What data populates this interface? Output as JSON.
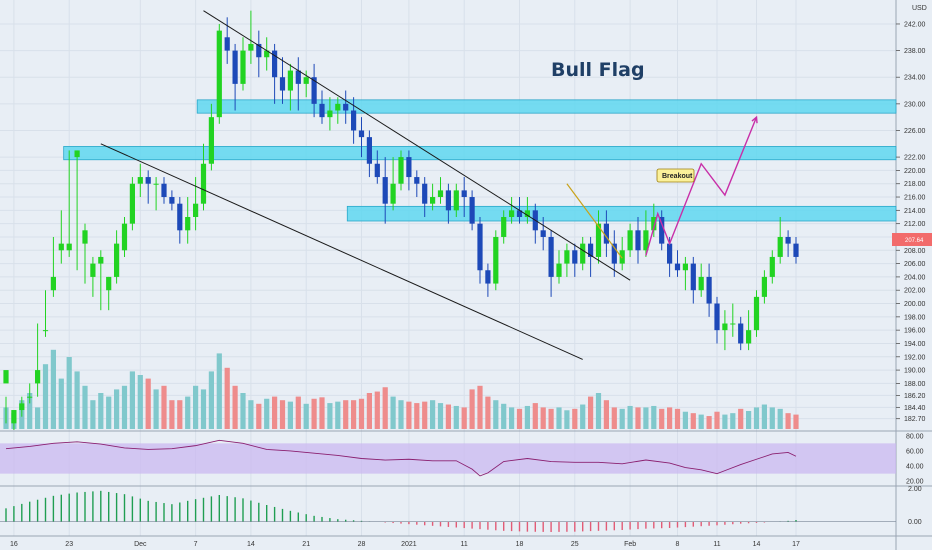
{
  "chart_data": {
    "type": "candlestick",
    "title": "Bull Flag",
    "annotation": "Breakout",
    "currency_label": "USD",
    "current_price_label": "207.64",
    "price_axis": {
      "min": 181,
      "max": 245,
      "ticks": [
        "182.70",
        "184.40",
        "186.20",
        "188.00",
        "190.00",
        "192.00",
        "194.00",
        "196.00",
        "198.00",
        "200.00",
        "202.00",
        "204.00",
        "206.00",
        "208.00",
        "210.00",
        "212.00",
        "214.00",
        "216.00",
        "218.00",
        "220.00",
        "222.00",
        "226.00",
        "230.00",
        "234.00",
        "238.00",
        "242.00"
      ]
    },
    "rsi_axis": {
      "min": 15,
      "max": 85,
      "ticks": [
        "80.00",
        "60.00",
        "40.00",
        "20.00"
      ]
    },
    "macd_axis": {
      "min": -0.8,
      "max": 2.2,
      "ticks": [
        "2.00",
        "0.00"
      ]
    },
    "x_axis_labels": [
      "16",
      "23",
      "Dec",
      "7",
      "14",
      "21",
      "28",
      "2021",
      "11",
      "18",
      "25",
      "Feb",
      "8",
      "11",
      "14",
      "17"
    ],
    "x_axis_positions": [
      1,
      8,
      17,
      24,
      31,
      38,
      45,
      51,
      58,
      65,
      72,
      79,
      85,
      90,
      95,
      100
    ],
    "resistance_zones": [
      [
        228.6,
        230.6
      ],
      [
        221.6,
        223.6
      ],
      [
        212.4,
        214.6
      ]
    ],
    "channel_upper": [
      [
        25,
        244.0
      ],
      [
        79,
        203.5
      ]
    ],
    "channel_lower": [
      [
        12,
        224.0
      ],
      [
        73,
        191.6
      ]
    ],
    "breakout_pointer": [
      [
        71,
        218.0
      ],
      [
        78,
        206.8
      ]
    ],
    "projection_path": [
      [
        81,
        207.2
      ],
      [
        82.5,
        213.5
      ],
      [
        84,
        209.0
      ],
      [
        88,
        221.0
      ],
      [
        91,
        216.3
      ],
      [
        95,
        228.0
      ]
    ],
    "colors": {
      "up": "#22d322",
      "down": "#1d49b8",
      "vol_up": "#80c8cc",
      "vol_down": "#ee8c8c",
      "zone": "#5fd7f0",
      "projection": "#c82fa8",
      "rsi_band": "#cbb8f0",
      "rsi_line": "#8a2070"
    },
    "candles": [
      [
        0,
        188.0,
        190.0,
        186.0,
        182.0
      ],
      [
        1,
        182.0,
        184.0,
        183.0,
        181.0
      ],
      [
        2,
        184.0,
        185.0,
        186.0,
        183.0
      ],
      [
        3,
        186.0,
        186.0,
        188.0,
        185.0
      ],
      [
        4,
        188.0,
        190.0,
        197.0,
        186.0
      ],
      [
        5,
        196.0,
        196.0,
        202.0,
        195.0
      ],
      [
        6,
        202.0,
        204.0,
        210.0,
        201.0
      ],
      [
        7,
        208.0,
        209.0,
        214.0,
        206.0
      ],
      [
        8,
        208.0,
        209.0,
        223.0,
        207.0
      ],
      [
        9,
        222.0,
        223.0,
        223.0,
        205.0
      ],
      [
        10,
        209.0,
        211.0,
        212.0,
        203.0
      ],
      [
        11,
        204.0,
        206.0,
        207.0,
        201.0
      ],
      [
        12,
        206.0,
        207.0,
        208.0,
        199.0
      ],
      [
        13,
        202.0,
        204.0,
        204.0,
        199.0
      ],
      [
        14,
        204.0,
        209.0,
        211.0,
        203.0
      ],
      [
        15,
        208.0,
        212.0,
        213.0,
        207.0
      ],
      [
        16,
        212.0,
        218.0,
        219.0,
        211.0
      ],
      [
        17,
        218.0,
        219.0,
        221.0,
        216.0
      ],
      [
        18,
        219.0,
        218.0,
        220.0,
        215.0
      ],
      [
        19,
        218.0,
        218.0,
        219.0,
        214.0
      ],
      [
        20,
        218.0,
        216.0,
        219.0,
        215.0
      ],
      [
        21,
        216.0,
        215.0,
        217.0,
        214.0
      ],
      [
        22,
        215.0,
        211.0,
        216.0,
        209.0
      ],
      [
        23,
        211.0,
        213.0,
        216.0,
        209.0
      ],
      [
        24,
        213.0,
        215.0,
        219.0,
        211.0
      ],
      [
        25,
        215.0,
        221.0,
        224.0,
        214.0
      ],
      [
        26,
        221.0,
        228.0,
        230.0,
        220.0
      ],
      [
        27,
        228.0,
        241.0,
        242.0,
        227.0
      ],
      [
        28,
        240.0,
        238.0,
        243.0,
        236.0
      ],
      [
        29,
        238.0,
        233.0,
        239.0,
        229.0
      ],
      [
        30,
        233.0,
        238.0,
        240.0,
        232.0
      ],
      [
        31,
        238.0,
        239.0,
        244.0,
        236.0
      ],
      [
        32,
        239.0,
        237.0,
        241.0,
        234.0
      ],
      [
        33,
        237.0,
        238.0,
        240.0,
        235.0
      ],
      [
        34,
        238.0,
        234.0,
        239.0,
        230.0
      ],
      [
        35,
        234.0,
        232.0,
        237.0,
        230.0
      ],
      [
        36,
        232.0,
        235.0,
        236.0,
        229.0
      ],
      [
        37,
        235.0,
        233.0,
        237.0,
        229.0
      ],
      [
        38,
        233.0,
        234.0,
        235.0,
        231.0
      ],
      [
        39,
        234.0,
        230.0,
        236.0,
        228.0
      ],
      [
        40,
        230.0,
        228.0,
        232.0,
        227.0
      ],
      [
        41,
        228.0,
        229.0,
        231.0,
        226.0
      ],
      [
        42,
        229.0,
        230.0,
        231.0,
        227.0
      ],
      [
        43,
        230.0,
        229.0,
        232.0,
        227.0
      ],
      [
        44,
        229.0,
        226.0,
        231.0,
        224.0
      ],
      [
        45,
        226.0,
        225.0,
        228.0,
        222.0
      ],
      [
        46,
        225.0,
        221.0,
        226.0,
        219.0
      ],
      [
        47,
        221.0,
        219.0,
        223.0,
        218.0
      ],
      [
        48,
        219.0,
        215.0,
        222.0,
        212.0
      ],
      [
        49,
        215.0,
        218.0,
        222.0,
        214.0
      ],
      [
        50,
        218.0,
        222.0,
        223.0,
        217.0
      ],
      [
        51,
        222.0,
        219.0,
        223.0,
        217.0
      ],
      [
        52,
        219.0,
        218.0,
        220.0,
        216.0
      ],
      [
        53,
        218.0,
        215.0,
        219.0,
        213.0
      ],
      [
        54,
        215.0,
        216.0,
        218.0,
        214.0
      ],
      [
        55,
        216.0,
        217.0,
        219.0,
        215.0
      ],
      [
        56,
        217.0,
        214.0,
        218.0,
        212.0
      ],
      [
        57,
        214.0,
        217.0,
        218.0,
        213.0
      ],
      [
        58,
        217.0,
        216.0,
        219.0,
        213.0
      ],
      [
        59,
        216.0,
        212.0,
        217.0,
        211.0
      ],
      [
        60,
        212.0,
        205.0,
        213.0,
        203.0
      ],
      [
        61,
        205.0,
        203.0,
        206.0,
        201.0
      ],
      [
        62,
        203.0,
        210.0,
        211.0,
        202.0
      ],
      [
        63,
        210.0,
        213.0,
        214.0,
        209.0
      ],
      [
        64,
        213.0,
        214.0,
        216.0,
        212.0
      ],
      [
        65,
        214.0,
        213.0,
        216.0,
        212.0
      ],
      [
        66,
        213.0,
        214.0,
        216.0,
        212.0
      ],
      [
        67,
        214.0,
        211.0,
        215.0,
        209.0
      ],
      [
        68,
        211.0,
        210.0,
        213.0,
        208.0
      ],
      [
        69,
        210.0,
        204.0,
        211.0,
        201.0
      ],
      [
        70,
        204.0,
        206.0,
        208.0,
        203.0
      ],
      [
        71,
        206.0,
        208.0,
        209.0,
        204.0
      ],
      [
        72,
        208.0,
        206.0,
        209.0,
        204.0
      ],
      [
        73,
        206.0,
        209.0,
        210.0,
        205.0
      ],
      [
        74,
        209.0,
        207.0,
        210.0,
        204.0
      ],
      [
        75,
        207.0,
        212.0,
        214.0,
        206.0
      ],
      [
        76,
        212.0,
        209.0,
        214.0,
        207.0
      ],
      [
        77,
        209.0,
        206.0,
        211.0,
        204.0
      ],
      [
        78,
        206.0,
        208.0,
        210.0,
        205.0
      ],
      [
        79,
        208.0,
        211.0,
        212.0,
        207.0
      ],
      [
        80,
        211.0,
        208.0,
        213.0,
        206.0
      ],
      [
        81,
        208.0,
        211.0,
        214.0,
        207.0
      ],
      [
        82,
        211.0,
        213.0,
        215.0,
        210.0
      ],
      [
        83,
        213.0,
        209.0,
        214.0,
        208.0
      ],
      [
        84,
        209.0,
        206.0,
        210.0,
        204.0
      ],
      [
        85,
        206.0,
        205.0,
        208.0,
        204.0
      ],
      [
        86,
        205.0,
        206.0,
        207.0,
        202.0
      ],
      [
        87,
        206.0,
        202.0,
        207.0,
        200.0
      ],
      [
        88,
        202.0,
        204.0,
        206.0,
        201.0
      ],
      [
        89,
        204.0,
        200.0,
        206.0,
        198.0
      ],
      [
        90,
        200.0,
        196.0,
        201.0,
        194.0
      ],
      [
        91,
        196.0,
        197.0,
        199.0,
        193.0
      ],
      [
        92,
        197.0,
        197.0,
        200.0,
        195.0
      ],
      [
        93,
        197.0,
        194.0,
        198.0,
        193.0
      ],
      [
        94,
        194.0,
        196.0,
        199.0,
        193.0
      ],
      [
        95,
        196.0,
        201.0,
        202.0,
        195.0
      ],
      [
        96,
        201.0,
        204.0,
        205.0,
        200.0
      ],
      [
        97,
        204.0,
        207.0,
        208.0,
        203.0
      ],
      [
        98,
        207.0,
        210.0,
        213.0,
        206.0
      ],
      [
        99,
        210.0,
        209.0,
        211.0,
        207.0
      ],
      [
        100,
        209.0,
        207.0,
        210.0,
        206.0
      ]
    ],
    "volume": [
      [
        0,
        30
      ],
      [
        1,
        22
      ],
      [
        2,
        40
      ],
      [
        3,
        50
      ],
      [
        4,
        30
      ],
      [
        5,
        90
      ],
      [
        6,
        110
      ],
      [
        7,
        70
      ],
      [
        8,
        100
      ],
      [
        9,
        80
      ],
      [
        10,
        60
      ],
      [
        11,
        40
      ],
      [
        12,
        50
      ],
      [
        13,
        45
      ],
      [
        14,
        55
      ],
      [
        15,
        60
      ],
      [
        16,
        80
      ],
      [
        17,
        75
      ],
      [
        18,
        70
      ],
      [
        19,
        55
      ],
      [
        20,
        60
      ],
      [
        21,
        40
      ],
      [
        22,
        40
      ],
      [
        23,
        45
      ],
      [
        24,
        60
      ],
      [
        25,
        55
      ],
      [
        26,
        80
      ],
      [
        27,
        105
      ],
      [
        28,
        85
      ],
      [
        29,
        60
      ],
      [
        30,
        50
      ],
      [
        31,
        40
      ],
      [
        32,
        35
      ],
      [
        33,
        42
      ],
      [
        34,
        45
      ],
      [
        35,
        40
      ],
      [
        36,
        38
      ],
      [
        37,
        45
      ],
      [
        38,
        35
      ],
      [
        39,
        42
      ],
      [
        40,
        44
      ],
      [
        41,
        36
      ],
      [
        42,
        38
      ],
      [
        43,
        40
      ],
      [
        44,
        40
      ],
      [
        45,
        42
      ],
      [
        46,
        50
      ],
      [
        47,
        52
      ],
      [
        48,
        58
      ],
      [
        49,
        45
      ],
      [
        50,
        40
      ],
      [
        51,
        38
      ],
      [
        52,
        36
      ],
      [
        53,
        38
      ],
      [
        54,
        40
      ],
      [
        55,
        36
      ],
      [
        56,
        34
      ],
      [
        57,
        32
      ],
      [
        58,
        30
      ],
      [
        59,
        55
      ],
      [
        60,
        60
      ],
      [
        61,
        45
      ],
      [
        62,
        40
      ],
      [
        63,
        35
      ],
      [
        64,
        30
      ],
      [
        65,
        28
      ],
      [
        66,
        32
      ],
      [
        67,
        36
      ],
      [
        68,
        30
      ],
      [
        69,
        28
      ],
      [
        70,
        30
      ],
      [
        71,
        26
      ],
      [
        72,
        28
      ],
      [
        73,
        34
      ],
      [
        74,
        45
      ],
      [
        75,
        50
      ],
      [
        76,
        40
      ],
      [
        77,
        30
      ],
      [
        78,
        28
      ],
      [
        79,
        32
      ],
      [
        80,
        30
      ],
      [
        81,
        30
      ],
      [
        82,
        32
      ],
      [
        83,
        28
      ],
      [
        84,
        30
      ],
      [
        85,
        28
      ],
      [
        86,
        24
      ],
      [
        87,
        22
      ],
      [
        88,
        20
      ],
      [
        89,
        18
      ],
      [
        90,
        24
      ],
      [
        91,
        20
      ],
      [
        92,
        22
      ],
      [
        93,
        28
      ],
      [
        94,
        25
      ],
      [
        95,
        30
      ],
      [
        96,
        34
      ],
      [
        97,
        30
      ],
      [
        98,
        28
      ],
      [
        99,
        22
      ],
      [
        100,
        20
      ]
    ],
    "rsi": [
      [
        0,
        63
      ],
      [
        3,
        66
      ],
      [
        6,
        70
      ],
      [
        9,
        72
      ],
      [
        12,
        69
      ],
      [
        15,
        64
      ],
      [
        18,
        62
      ],
      [
        21,
        63
      ],
      [
        24,
        67
      ],
      [
        27,
        74
      ],
      [
        30,
        70
      ],
      [
        33,
        62
      ],
      [
        36,
        60
      ],
      [
        39,
        57
      ],
      [
        42,
        54
      ],
      [
        45,
        50
      ],
      [
        48,
        48
      ],
      [
        51,
        49
      ],
      [
        54,
        47
      ],
      [
        57,
        47
      ],
      [
        59,
        36
      ],
      [
        60,
        27
      ],
      [
        61,
        31
      ],
      [
        63,
        46
      ],
      [
        66,
        50
      ],
      [
        69,
        46
      ],
      [
        72,
        45
      ],
      [
        75,
        45
      ],
      [
        78,
        43
      ],
      [
        81,
        48
      ],
      [
        84,
        44
      ],
      [
        86,
        38
      ],
      [
        88,
        35
      ],
      [
        90,
        30
      ],
      [
        91,
        34
      ],
      [
        93,
        42
      ],
      [
        95,
        49
      ],
      [
        97,
        56
      ],
      [
        99,
        58
      ],
      [
        100,
        53
      ]
    ],
    "macd": [
      [
        0,
        0.8
      ],
      [
        3,
        1.2
      ],
      [
        6,
        1.55
      ],
      [
        9,
        1.75
      ],
      [
        12,
        1.85
      ],
      [
        15,
        1.65
      ],
      [
        18,
        1.25
      ],
      [
        21,
        1.05
      ],
      [
        24,
        1.35
      ],
      [
        27,
        1.6
      ],
      [
        30,
        1.4
      ],
      [
        33,
        1.0
      ],
      [
        36,
        0.65
      ],
      [
        39,
        0.35
      ],
      [
        42,
        0.15
      ],
      [
        45,
        0.05
      ],
      [
        48,
        -0.05
      ],
      [
        51,
        -0.15
      ],
      [
        54,
        -0.25
      ],
      [
        57,
        -0.35
      ],
      [
        60,
        -0.45
      ],
      [
        63,
        -0.55
      ],
      [
        66,
        -0.6
      ],
      [
        69,
        -0.62
      ],
      [
        72,
        -0.6
      ],
      [
        75,
        -0.55
      ],
      [
        78,
        -0.5
      ],
      [
        81,
        -0.42
      ],
      [
        84,
        -0.38
      ],
      [
        87,
        -0.3
      ],
      [
        90,
        -0.22
      ],
      [
        93,
        -0.12
      ],
      [
        96,
        -0.05
      ],
      [
        99,
        0.05
      ],
      [
        100,
        0.1
      ]
    ]
  }
}
